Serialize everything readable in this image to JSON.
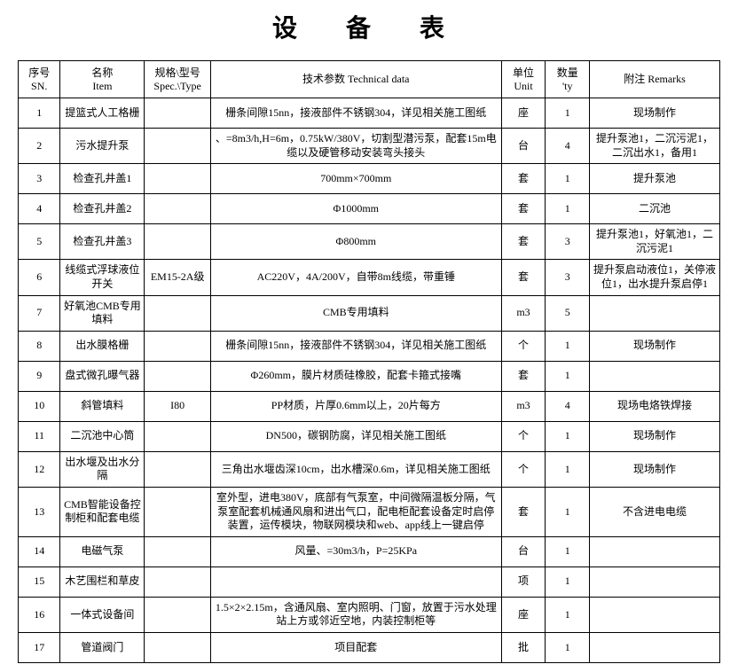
{
  "title": "设 备 表",
  "headers": {
    "sn": {
      "top": "序号",
      "bottom": "SN."
    },
    "item": {
      "top": "名称",
      "bottom": "Item"
    },
    "spec": {
      "top": "规格\\型号",
      "bottom": "Spec.\\Type"
    },
    "tech": "技术参数 Technical data",
    "unit": {
      "top": "单位",
      "bottom": "Unit"
    },
    "qty": {
      "top": "数量",
      "bottom": "'ty"
    },
    "remarks": "附注 Remarks"
  },
  "rows": [
    {
      "sn": "1",
      "item": "提篮式人工格栅",
      "spec": "",
      "tech": "栅条间隙15nn，接液部件不锈钢304，详见相关施工图纸",
      "unit": "座",
      "qty": "1",
      "remarks": "现场制作"
    },
    {
      "sn": "2",
      "item": "污水提升泵",
      "spec": "",
      "tech": "、=8m3/h,H=6m，0.75kW/380V，切割型潜污泵，配套15m电缆以及硬管移动安装弯头接头",
      "unit": "台",
      "qty": "4",
      "remarks": "提升泵池1，二沉污泥1，二沉出水1，备用1"
    },
    {
      "sn": "3",
      "item": "检查孔井盖1",
      "spec": "",
      "tech": "700mm×700mm",
      "unit": "套",
      "qty": "1",
      "remarks": "提升泵池"
    },
    {
      "sn": "4",
      "item": "检查孔井盖2",
      "spec": "",
      "tech": "Φ1000mm",
      "unit": "套",
      "qty": "1",
      "remarks": "二沉池"
    },
    {
      "sn": "5",
      "item": "检查孔井盖3",
      "spec": "",
      "tech": "Φ800mm",
      "unit": "套",
      "qty": "3",
      "remarks": "提升泵池1，好氧池1，二沉污泥1"
    },
    {
      "sn": "6",
      "item": "线缆式浮球液位开关",
      "spec": "EM15-2A级",
      "tech": "AC220V，4A/200V，自带8m线缆，带重锤",
      "unit": "套",
      "qty": "3",
      "remarks": "提升泵启动液位1，关停液位1，出水提升泵启停1"
    },
    {
      "sn": "7",
      "item": "好氧池CMB专用填料",
      "spec": "",
      "tech": "CMB专用填料",
      "unit": "m3",
      "qty": "5",
      "remarks": ""
    },
    {
      "sn": "8",
      "item": "出水膜格栅",
      "spec": "",
      "tech": "栅条间隙15nn，接液部件不锈钢304，详见相关施工图纸",
      "unit": "个",
      "qty": "1",
      "remarks": "现场制作"
    },
    {
      "sn": "9",
      "item": "盘式微孔曝气器",
      "spec": "",
      "tech": "Φ260mm，膜片材质硅橡胶，配套卡箍式接嘴",
      "unit": "套",
      "qty": "1",
      "remarks": ""
    },
    {
      "sn": "10",
      "item": "斜管填料",
      "spec": "I80",
      "tech": "PP材质，片厚0.6mm以上，20片每方",
      "unit": "m3",
      "qty": "4",
      "remarks": "现场电烙铁焊接"
    },
    {
      "sn": "11",
      "item": "二沉池中心筒",
      "spec": "",
      "tech": "DN500，碳钢防腐，详见相关施工图纸",
      "unit": "个",
      "qty": "1",
      "remarks": "现场制作"
    },
    {
      "sn": "12",
      "item": "出水堰及出水分隔",
      "spec": "",
      "tech": "三角出水堰齿深10cm，出水槽深0.6m，详见相关施工图纸",
      "unit": "个",
      "qty": "1",
      "remarks": "现场制作"
    },
    {
      "sn": "13",
      "item": "CMB智能设备控制柜和配套电缆",
      "spec": "",
      "tech": "室外型，进电380V，底部有气泵室，中间微隔温板分隔，气泵室配套机械通风扇和进出气口，配电柜配套设备定时启停装置，运传模块，物联网模块和web、app线上一键启停",
      "unit": "套",
      "qty": "1",
      "remarks": "不含进电电缆"
    },
    {
      "sn": "14",
      "item": "电磁气泵",
      "spec": "",
      "tech": "风量、=30m3/h，P=25KPa",
      "unit": "台",
      "qty": "1",
      "remarks": ""
    },
    {
      "sn": "15",
      "item": "木艺围栏和草皮",
      "spec": "",
      "tech": "",
      "unit": "项",
      "qty": "1",
      "remarks": ""
    },
    {
      "sn": "16",
      "item": "一体式设备间",
      "spec": "",
      "tech": "1.5×2×2.15m，含通风扇、室内照明、门窗，放置于污水处理站上方或邻近空地，内装控制柜等",
      "unit": "座",
      "qty": "1",
      "remarks": ""
    },
    {
      "sn": "17",
      "item": "管道阀门",
      "spec": "",
      "tech": "项目配套",
      "unit": "批",
      "qty": "1",
      "remarks": ""
    }
  ]
}
